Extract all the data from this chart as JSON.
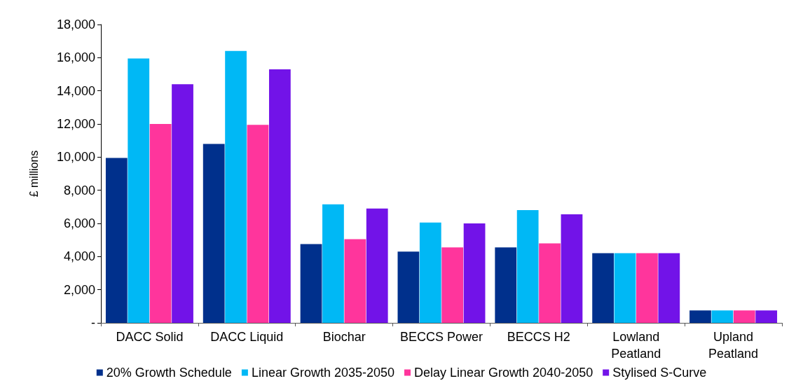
{
  "chart_data": {
    "type": "bar",
    "ylabel": "£ millions",
    "categories": [
      "DACC Solid",
      "DACC Liquid",
      "Biochar",
      "BECCS Power",
      "BECCS H2",
      "Lowland\nPeatland",
      "Upland\nPeatland"
    ],
    "series": [
      {
        "name": "20% Growth Schedule",
        "color": "#00308c",
        "values": [
          9950,
          10800,
          4750,
          4300,
          4550,
          4200,
          750
        ]
      },
      {
        "name": "Linear Growth 2035-2050",
        "color": "#00b8f5",
        "values": [
          15950,
          16400,
          7150,
          6050,
          6800,
          4200,
          750
        ]
      },
      {
        "name": "Delay Linear Growth 2040-2050",
        "color": "#ff359c",
        "values": [
          12000,
          11950,
          5050,
          4550,
          4800,
          4200,
          750
        ]
      },
      {
        "name": "Stylised S-Curve",
        "color": "#7213e8",
        "values": [
          14400,
          15300,
          6900,
          6000,
          6550,
          4200,
          750
        ]
      }
    ],
    "ylim": [
      0,
      18000
    ],
    "yticks": [
      {
        "value": 0,
        "label": "-"
      },
      {
        "value": 2000,
        "label": "2,000"
      },
      {
        "value": 4000,
        "label": "4,000"
      },
      {
        "value": 6000,
        "label": "6,000"
      },
      {
        "value": 8000,
        "label": "8,000"
      },
      {
        "value": 10000,
        "label": "10,000"
      },
      {
        "value": 12000,
        "label": "12,000"
      },
      {
        "value": 14000,
        "label": "14,000"
      },
      {
        "value": 16000,
        "label": "16,000"
      },
      {
        "value": 18000,
        "label": "18,000"
      }
    ],
    "grid": false,
    "legend": "bottom"
  }
}
